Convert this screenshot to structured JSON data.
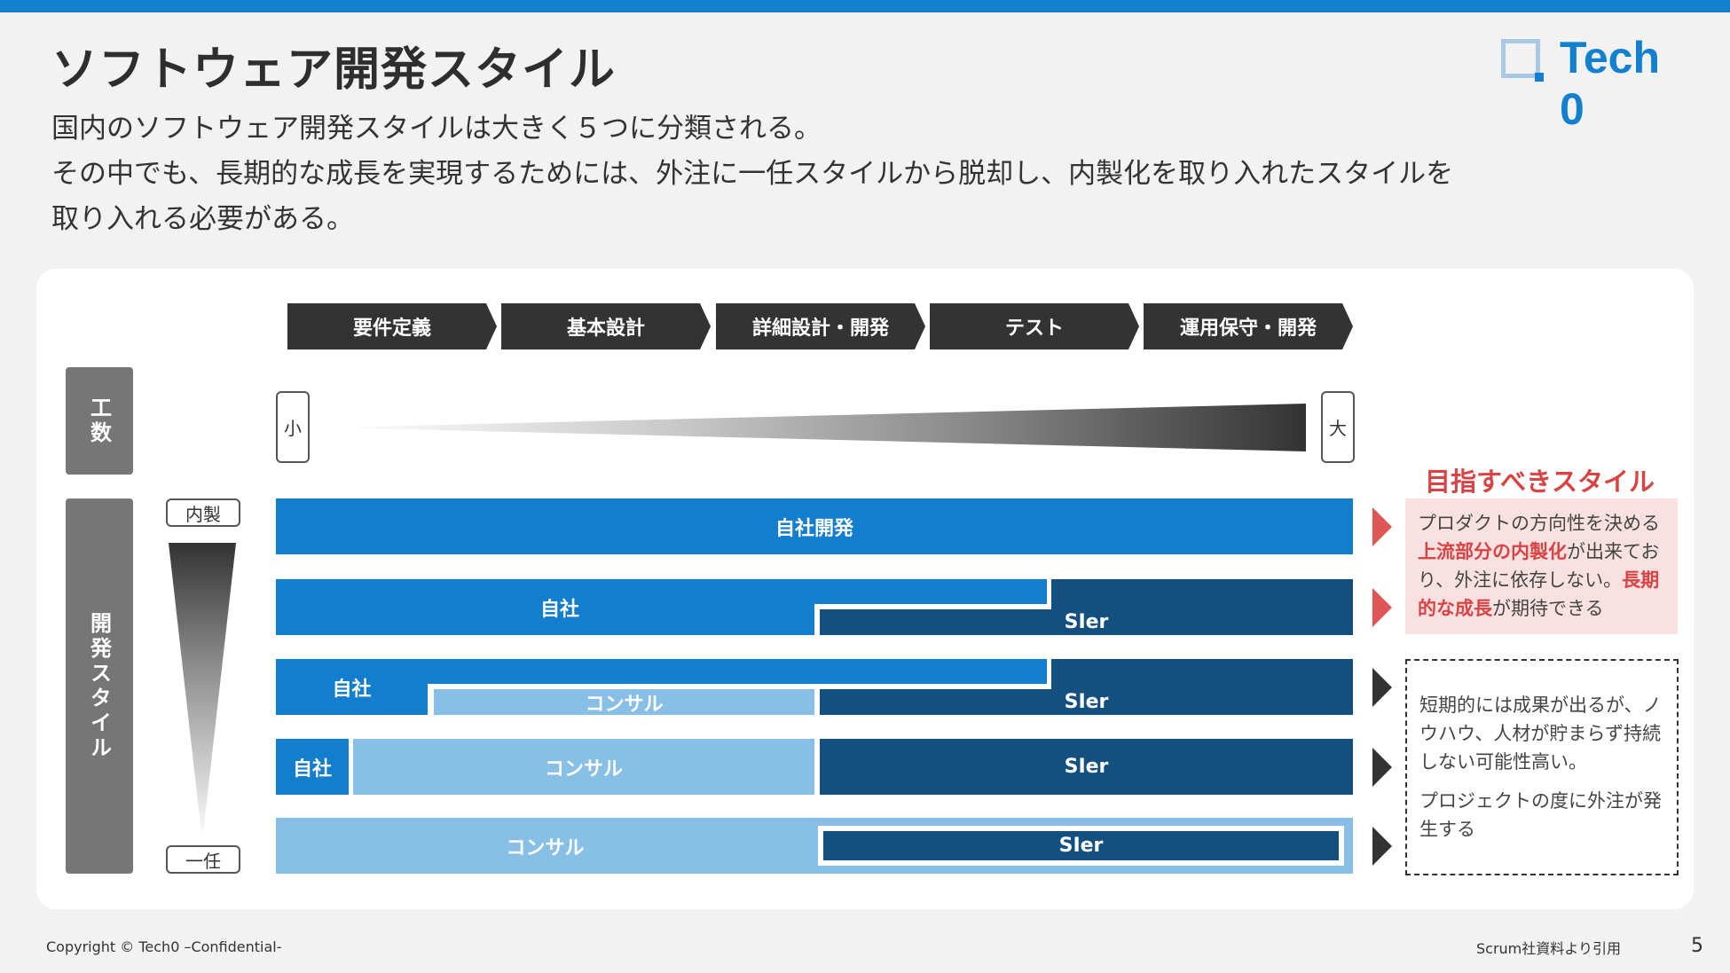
{
  "header": {
    "title": "ソフトウェア開発スタイル",
    "logo_text": "Tech 0"
  },
  "description": {
    "line1": "国内のソフトウェア開発スタイルは大きく５つに分類される。",
    "line2": "その中でも、長期的な成長を実現するためには、外注に一任スタイルから脱却し、内製化を取り入れたスタイルを",
    "line3": "取り入れる必要がある。"
  },
  "phases": [
    "要件定義",
    "基本設計",
    "詳細設計・開発",
    "テスト",
    "運用保守・開発"
  ],
  "effort": {
    "label": "工数",
    "small": "小",
    "large": "大"
  },
  "style_axis": {
    "label": "開発スタイル",
    "top": "内製",
    "bottom": "一任"
  },
  "rows": [
    {
      "jisha": "自社開発"
    },
    {
      "jisha": "自社",
      "sier": "SIer"
    },
    {
      "jisha": "自社",
      "consul": "コンサル",
      "sier": "SIer"
    },
    {
      "jisha": "自社",
      "consul": "コンサル",
      "sier": "SIer"
    },
    {
      "consul": "コンサル",
      "sier": "SIer"
    }
  ],
  "goal": {
    "title": "目指すべきスタイル",
    "text_a": "プロダクトの方向性を決める",
    "highlight1": "上流部分の内製化",
    "text_b": "が出来ており、外注に依存しない。",
    "highlight2": "長期的な成長",
    "text_c": "が期待できる"
  },
  "warning": {
    "para1": "短期的には成果が出るが、ノウハウ、人材が貯まらず持続しない可能性高い。",
    "para2": "プロジェクトの度に外注が発生する"
  },
  "footer": {
    "copyright": "Copyright © Tech0 –Confidential-",
    "source": "Scrum社資料より引用",
    "page": "5"
  },
  "colors": {
    "accent": "#1380cf",
    "jisha": "#137dce",
    "sier": "#14507f",
    "consul": "#88bfe6",
    "highlight": "#d94343"
  }
}
